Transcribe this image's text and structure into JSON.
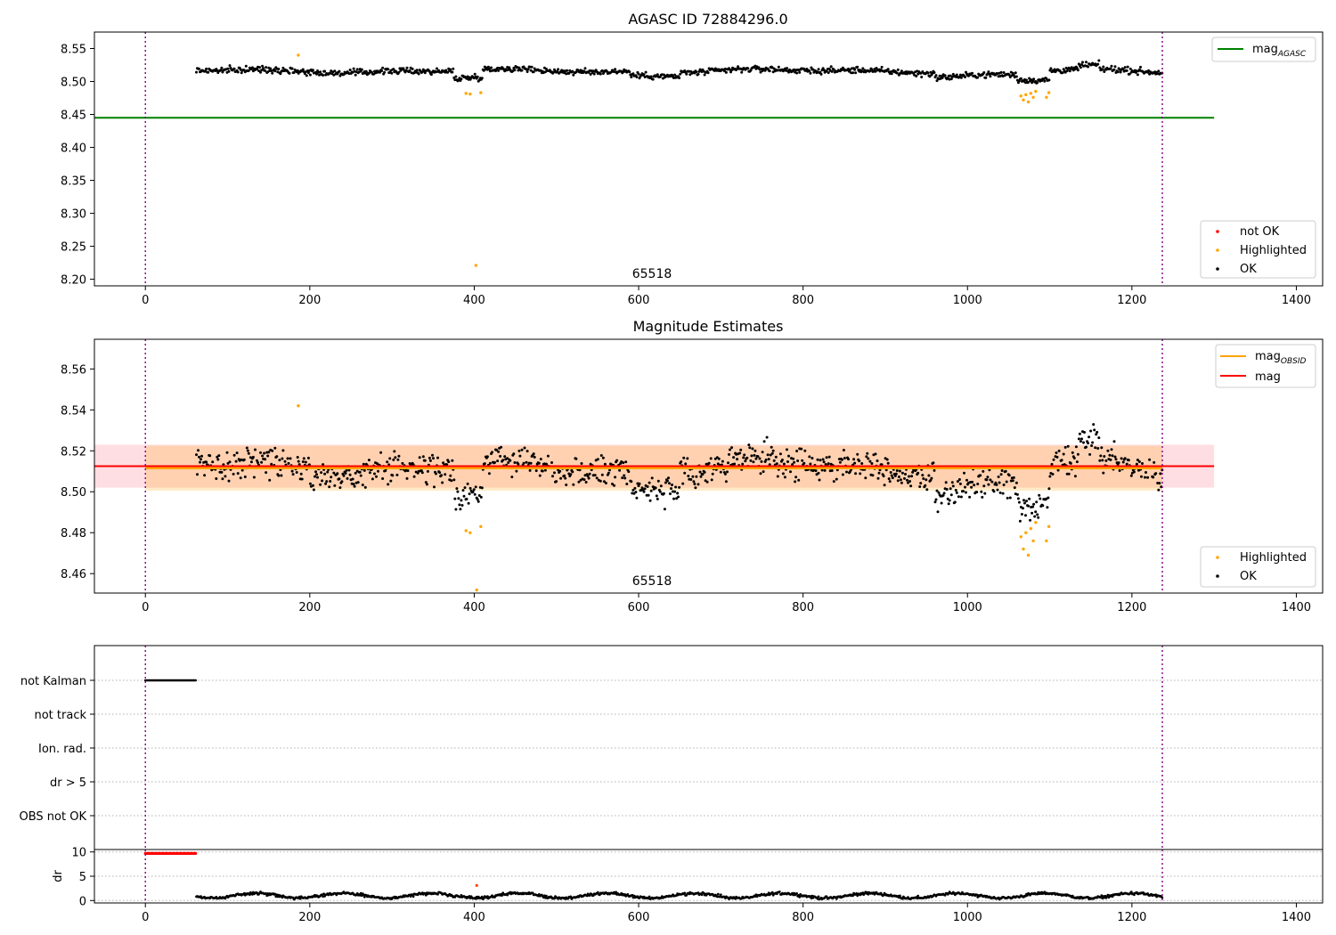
{
  "chart_data": [
    {
      "type": "scatter",
      "title": "AGASC ID 72884296.0",
      "xlim": [
        -62,
        1432
      ],
      "ylim": [
        8.19,
        8.575
      ],
      "x_ticks": [
        0,
        200,
        400,
        600,
        800,
        1000,
        1200,
        1400
      ],
      "y_ticks": [
        "8.20",
        "8.25",
        "8.30",
        "8.35",
        "8.40",
        "8.45",
        "8.50",
        "8.55"
      ],
      "annotation": "65518",
      "vlines": [
        0,
        1237
      ],
      "mag_agasc": 8.445,
      "mag_agasc_range": [
        -62,
        1300
      ],
      "legend_lines": [
        {
          "label": "mag",
          "sub": "AGASC",
          "color": "#008000"
        }
      ],
      "legend_points": [
        {
          "label": "not OK",
          "color": "#ff0000"
        },
        {
          "label": "Highlighted",
          "color": "#ffa500"
        },
        {
          "label": "OK",
          "color": "#000000"
        }
      ],
      "series": {
        "ok_range": [
          62,
          1237
        ],
        "ok_baseline": 8.516,
        "ok_scatter": 0.006,
        "highlighted": [
          [
            186,
            8.54
          ],
          [
            390,
            8.482
          ],
          [
            395,
            8.481
          ],
          [
            402,
            8.221
          ],
          [
            408,
            8.483
          ],
          [
            1065,
            8.478
          ],
          [
            1068,
            8.472
          ],
          [
            1071,
            8.48
          ],
          [
            1074,
            8.469
          ],
          [
            1077,
            8.482
          ],
          [
            1080,
            8.476
          ],
          [
            1083,
            8.485
          ],
          [
            1096,
            8.476
          ],
          [
            1099,
            8.483
          ]
        ]
      }
    },
    {
      "type": "scatter",
      "title": "Magnitude Estimates",
      "xlim": [
        -62,
        1432
      ],
      "ylim": [
        8.4505,
        8.5745
      ],
      "x_ticks": [
        0,
        200,
        400,
        600,
        800,
        1000,
        1200,
        1400
      ],
      "y_ticks": [
        "8.46",
        "8.48",
        "8.50",
        "8.52",
        "8.54",
        "8.56"
      ],
      "annotation": "65518",
      "vlines": [
        0,
        1237
      ],
      "mag": 8.5125,
      "mag_band": [
        8.502,
        8.523
      ],
      "mag_obsid": 8.5115,
      "mag_obsid_band": [
        8.5005,
        8.5225
      ],
      "legend_lines": [
        {
          "label": "mag",
          "sub": "OBSID",
          "color": "#ffa500"
        },
        {
          "label": "mag",
          "sub": "",
          "color": "#ff0000"
        }
      ],
      "legend_points": [
        {
          "label": "Highlighted",
          "color": "#ffa500"
        },
        {
          "label": "OK",
          "color": "#000000"
        }
      ],
      "series": {
        "ok_range": [
          62,
          1237
        ],
        "ok_baseline": 8.512,
        "ok_scatter": 0.0085,
        "highlighted": [
          [
            186,
            8.542
          ],
          [
            390,
            8.481
          ],
          [
            395,
            8.48
          ],
          [
            403,
            8.452
          ],
          [
            408,
            8.483
          ],
          [
            1065,
            8.478
          ],
          [
            1068,
            8.472
          ],
          [
            1071,
            8.48
          ],
          [
            1074,
            8.469
          ],
          [
            1077,
            8.482
          ],
          [
            1080,
            8.476
          ],
          [
            1083,
            8.485
          ],
          [
            1096,
            8.476
          ],
          [
            1099,
            8.483
          ]
        ]
      }
    },
    {
      "type": "scatter",
      "title": "",
      "xlim": [
        -62,
        1432
      ],
      "categories": [
        "not Kalman",
        "not track",
        "Ion. rad.",
        "dr > 5",
        "OBS not OK"
      ],
      "flag_not_kalman_range": [
        0,
        62
      ],
      "vlines": [
        0,
        1237
      ]
    },
    {
      "type": "scatter",
      "title": "",
      "xlim": [
        -62,
        1432
      ],
      "ylim": [
        -0.5,
        10.5
      ],
      "ylabel": "dr",
      "x_ticks": [
        0,
        200,
        400,
        600,
        800,
        1000,
        1200,
        1400
      ],
      "y_ticks": [
        0,
        5,
        10
      ],
      "vlines": [
        0,
        1237
      ],
      "series": {
        "red_range": [
          0,
          62
        ],
        "red_value": 9.7,
        "ok_range": [
          62,
          1237
        ],
        "ok_baseline": 1.0,
        "outlier": [
          403,
          3.1
        ]
      }
    }
  ]
}
